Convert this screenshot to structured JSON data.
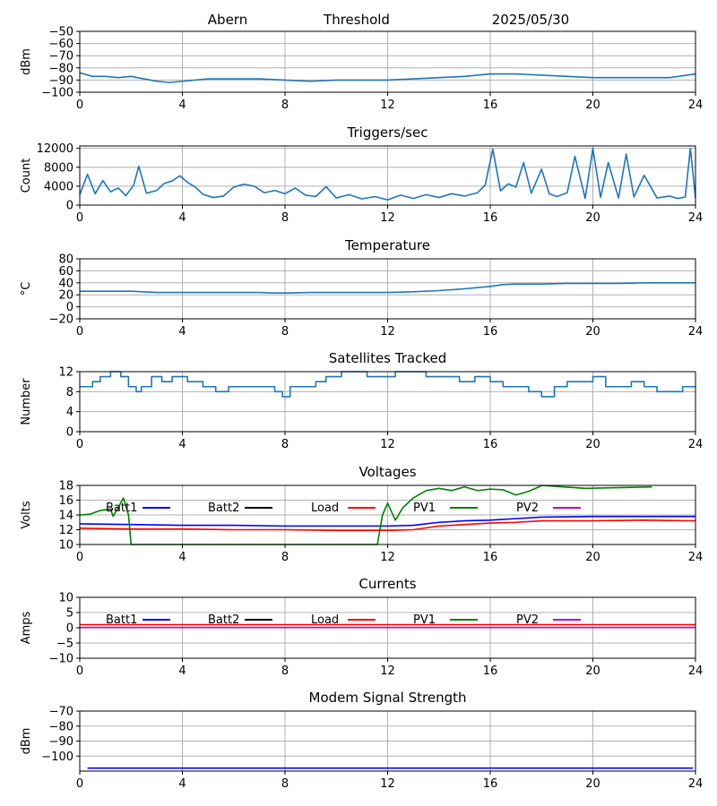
{
  "header": {
    "station": "Abern",
    "mode": "Threshold",
    "date": "2025/05/30"
  },
  "chart_data": [
    {
      "type": "line",
      "title": "",
      "ylabel": "dBm",
      "xlim": [
        0,
        24
      ],
      "ylim": [
        -100,
        -50
      ],
      "xticks": [
        0,
        4,
        8,
        12,
        16,
        20,
        24
      ],
      "yticks": [
        -100,
        -90,
        -80,
        -70,
        -60,
        -50
      ],
      "ytick_labels": [
        "−100",
        "−90",
        "−80",
        "−70",
        "−60",
        "−50"
      ],
      "grid": true,
      "series": [
        {
          "color": "#1f77b4",
          "x": [
            0,
            0.5,
            1,
            1.5,
            2,
            2.5,
            3,
            3.5,
            4,
            5,
            6,
            7,
            8,
            9,
            10,
            11,
            12,
            13,
            14,
            15,
            16,
            17,
            18,
            19,
            20,
            21,
            22,
            23,
            24
          ],
          "y": [
            -84,
            -87,
            -87,
            -88,
            -87,
            -89,
            -91,
            -92,
            -91,
            -89,
            -89,
            -89,
            -90,
            -91,
            -90,
            -90,
            -90,
            -89,
            -88,
            -87,
            -85,
            -85,
            -86,
            -87,
            -88,
            -88,
            -88,
            -88,
            -85
          ]
        }
      ]
    },
    {
      "type": "line",
      "title": "Triggers/sec",
      "ylabel": "Count",
      "xlim": [
        0,
        24
      ],
      "ylim": [
        0,
        12500
      ],
      "xticks": [
        0,
        4,
        8,
        12,
        16,
        20,
        24
      ],
      "yticks": [
        0,
        4000,
        8000,
        12000
      ],
      "grid": true,
      "series": [
        {
          "color": "#1f77b4",
          "x": [
            0,
            0.3,
            0.6,
            0.9,
            1.2,
            1.5,
            1.8,
            2.1,
            2.3,
            2.6,
            3,
            3.3,
            3.6,
            3.9,
            4.2,
            4.5,
            4.8,
            5.2,
            5.6,
            6,
            6.4,
            6.8,
            7.2,
            7.6,
            8,
            8.4,
            8.8,
            9.2,
            9.6,
            10,
            10.5,
            11,
            11.5,
            12,
            12.5,
            13,
            13.5,
            14,
            14.5,
            15,
            15.5,
            15.8,
            16.1,
            16.4,
            16.7,
            17,
            17.3,
            17.6,
            18,
            18.3,
            18.6,
            19,
            19.3,
            19.7,
            20,
            20.3,
            20.6,
            21,
            21.3,
            21.6,
            22,
            22.5,
            23,
            23.3,
            23.6,
            23.8,
            24
          ],
          "y": [
            2200,
            6500,
            2400,
            5200,
            2800,
            3600,
            2000,
            4200,
            8200,
            2500,
            3100,
            4600,
            5100,
            6200,
            4800,
            3800,
            2300,
            1600,
            1900,
            3800,
            4400,
            4000,
            2600,
            3100,
            2400,
            3600,
            2100,
            1800,
            3900,
            1500,
            2200,
            1300,
            1800,
            1100,
            2100,
            1400,
            2200,
            1600,
            2400,
            1900,
            2600,
            4200,
            11800,
            3000,
            4500,
            3800,
            9000,
            2500,
            7600,
            2400,
            1800,
            2600,
            10300,
            1400,
            12000,
            1600,
            9000,
            1500,
            10800,
            1700,
            6300,
            1500,
            1900,
            1400,
            1700,
            12000,
            1500
          ]
        }
      ]
    },
    {
      "type": "line",
      "title": "Temperature",
      "ylabel": "°C",
      "xlim": [
        0,
        24
      ],
      "ylim": [
        -20,
        80
      ],
      "xticks": [
        0,
        4,
        8,
        12,
        16,
        20,
        24
      ],
      "yticks": [
        -20,
        0,
        20,
        40,
        60,
        80
      ],
      "ytick_labels": [
        "−20",
        "0",
        "20",
        "40",
        "60",
        "80"
      ],
      "grid": true,
      "series": [
        {
          "color": "#1f77b4",
          "x": [
            0,
            1,
            2,
            3,
            4,
            5,
            6,
            7,
            7.5,
            8,
            9,
            10,
            11,
            12,
            13,
            14,
            15,
            16,
            16.5,
            17,
            18,
            19,
            20,
            21,
            22,
            23,
            24
          ],
          "y": [
            26,
            26,
            26,
            24,
            24,
            24,
            24,
            24,
            23,
            23,
            24,
            24,
            24,
            24,
            25,
            27,
            30,
            34,
            37,
            38,
            38,
            39,
            39,
            39,
            40,
            40,
            40
          ]
        }
      ]
    },
    {
      "type": "line",
      "title": "Satellites Tracked",
      "ylabel": "Number",
      "xlim": [
        0,
        24
      ],
      "ylim": [
        0,
        12
      ],
      "xticks": [
        0,
        4,
        8,
        12,
        16,
        20,
        24
      ],
      "yticks": [
        0,
        4,
        8,
        12
      ],
      "grid": true,
      "series": [
        {
          "color": "#1f77b4",
          "step": true,
          "x": [
            0,
            0.5,
            0.8,
            1.2,
            1.6,
            1.9,
            2.2,
            2.4,
            2.8,
            3.2,
            3.6,
            4.2,
            4.8,
            5.3,
            5.8,
            6.5,
            7.2,
            7.6,
            7.9,
            8.2,
            8.7,
            9.2,
            9.6,
            10.2,
            10.8,
            11.2,
            11.8,
            12.3,
            12.8,
            13.5,
            14.2,
            14.8,
            15.4,
            16,
            16.5,
            17,
            17.5,
            18,
            18.5,
            19,
            19.5,
            20,
            20.5,
            21,
            21.5,
            22,
            22.5,
            23,
            23.5,
            24
          ],
          "y": [
            9,
            10,
            11,
            12,
            11,
            9,
            8,
            9,
            11,
            10,
            11,
            10,
            9,
            8,
            9,
            9,
            9,
            8,
            7,
            9,
            9,
            10,
            11,
            12,
            12,
            11,
            11,
            12,
            12,
            11,
            11,
            10,
            11,
            10,
            9,
            9,
            8,
            7,
            9,
            10,
            10,
            11,
            9,
            9,
            10,
            9,
            8,
            8,
            9,
            9
          ]
        }
      ]
    },
    {
      "type": "line",
      "title": "Voltages",
      "ylabel": "Volts",
      "xlim": [
        0,
        24
      ],
      "ylim": [
        10,
        18
      ],
      "xticks": [
        0,
        4,
        8,
        12,
        16,
        20,
        24
      ],
      "yticks": [
        10,
        12,
        14,
        16,
        18
      ],
      "grid": true,
      "legend": [
        "Batt1",
        "Batt2",
        "Load",
        "PV1",
        "PV2"
      ],
      "legend_colors": [
        "#0000ff",
        "#000000",
        "#ff0000",
        "#008000",
        "#bf00bf"
      ],
      "series": [
        {
          "name": "Batt1",
          "color": "#0000ff",
          "x": [
            0,
            2,
            4,
            6,
            8,
            10,
            12,
            13,
            14,
            15,
            16,
            17,
            18,
            20,
            22,
            24
          ],
          "y": [
            12.8,
            12.7,
            12.6,
            12.6,
            12.5,
            12.5,
            12.5,
            12.6,
            13.0,
            13.2,
            13.3,
            13.5,
            13.7,
            13.8,
            13.8,
            13.8
          ]
        },
        {
          "name": "Load",
          "color": "#ff0000",
          "x": [
            0,
            2,
            4,
            6,
            8,
            10,
            12,
            13,
            14,
            15,
            16,
            17,
            18,
            20,
            22,
            24
          ],
          "y": [
            12.2,
            12.1,
            12.1,
            12.0,
            12.0,
            11.9,
            11.9,
            12.0,
            12.5,
            12.7,
            12.9,
            13.0,
            13.2,
            13.2,
            13.3,
            13.2
          ]
        },
        {
          "name": "PV1",
          "color": "#008000",
          "x": [
            0,
            0.4,
            0.8,
            1.2,
            1.3,
            1.5,
            1.7,
            1.9,
            2.0,
            11.6,
            11.8,
            12.0,
            12.3,
            12.6,
            13.0,
            13.5,
            14.0,
            14.5,
            15.0,
            15.5,
            16.0,
            16.5,
            17.0,
            17.5,
            17.9,
            18.0,
            19.7,
            22.3
          ],
          "y": [
            14.0,
            14.1,
            14.6,
            14.8,
            13.8,
            15.0,
            16.3,
            14.0,
            10.0,
            10.0,
            14.0,
            15.6,
            13.3,
            15.0,
            16.3,
            17.3,
            17.6,
            17.3,
            17.8,
            17.3,
            17.5,
            17.4,
            16.7,
            17.2,
            17.8,
            18.0,
            17.6,
            17.8
          ]
        }
      ]
    },
    {
      "type": "line",
      "title": "Currents",
      "ylabel": "Amps",
      "xlim": [
        0,
        24
      ],
      "ylim": [
        -10,
        10
      ],
      "xticks": [
        0,
        4,
        8,
        12,
        16,
        20,
        24
      ],
      "yticks": [
        -10,
        -5,
        0,
        5,
        10
      ],
      "ytick_labels": [
        "−10",
        "−5",
        "0",
        "5",
        "10"
      ],
      "grid": true,
      "legend": [
        "Batt1",
        "Batt2",
        "Load",
        "PV1",
        "PV2"
      ],
      "legend_colors": [
        "#0000ff",
        "#000000",
        "#ff0000",
        "#008000",
        "#bf00bf"
      ],
      "series": [
        {
          "name": "Load",
          "color": "#ff0000",
          "x": [
            0,
            24
          ],
          "y": [
            1.0,
            1.0
          ]
        },
        {
          "name": "PV2",
          "color": "#bf00bf",
          "x": [
            0,
            24
          ],
          "y": [
            0.1,
            0.1
          ]
        }
      ]
    },
    {
      "type": "line",
      "title": "Modem Signal Strength",
      "ylabel": "dBm",
      "xlim": [
        0,
        24
      ],
      "ylim": [
        -110,
        -70
      ],
      "xticks": [
        0,
        4,
        8,
        12,
        16,
        20,
        24
      ],
      "yticks": [
        -100,
        -90,
        -80,
        -70
      ],
      "ytick_labels": [
        "−100",
        "−90",
        "−80",
        "−70"
      ],
      "grid": true,
      "series": [
        {
          "color": "#0000ff",
          "x": [
            0.3,
            23.9
          ],
          "y": [
            -108,
            -108
          ]
        }
      ]
    }
  ]
}
